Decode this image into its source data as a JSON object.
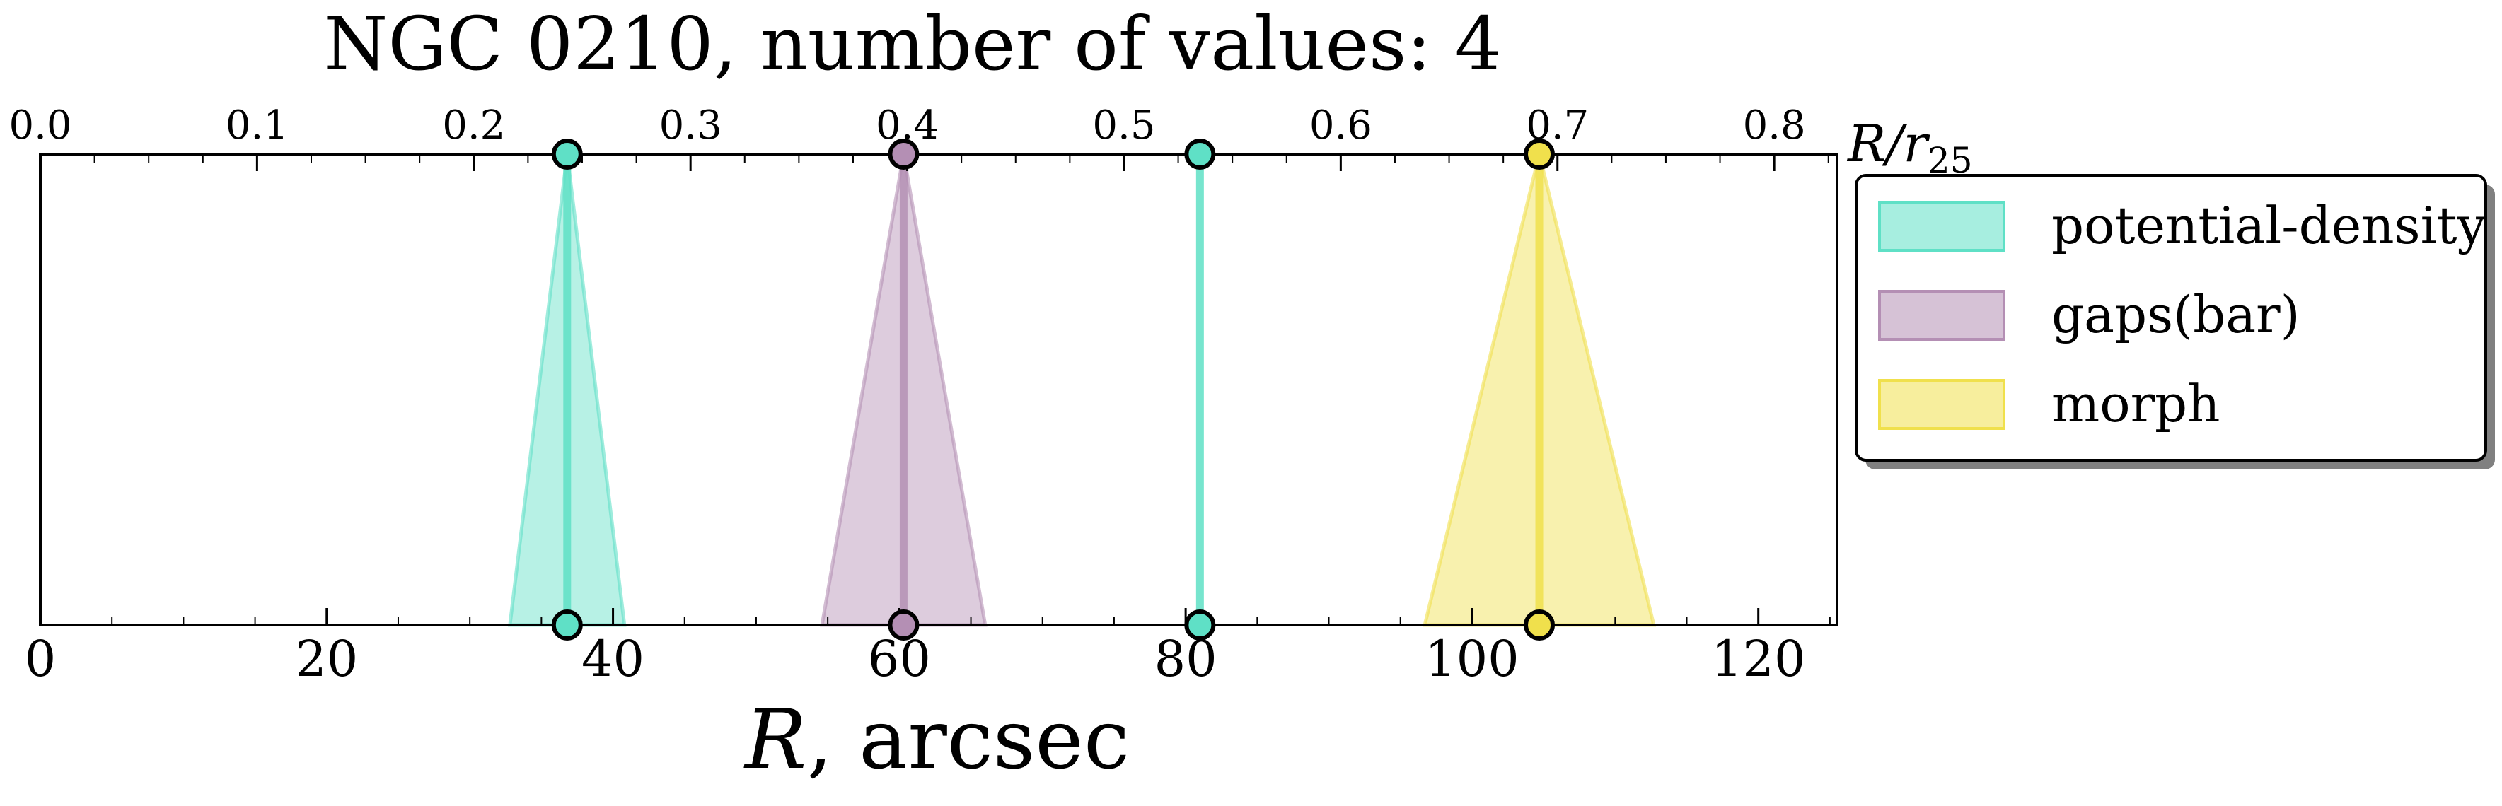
{
  "chart_data": {
    "type": "interval",
    "title": "NGC 0210, number of values: 4",
    "xlabel_italic": "R",
    "xlabel_rest": ", arcsec",
    "top_axis_label": {
      "main": "R/r",
      "sub": "25"
    },
    "xlim": [
      0,
      125.5
    ],
    "xticks": [
      0,
      20,
      40,
      60,
      80,
      100,
      120
    ],
    "xtick_labels": [
      "0",
      "20",
      "40",
      "60",
      "80",
      "100",
      "120"
    ],
    "top_xlim": [
      0,
      0.829
    ],
    "top_xticks": [
      0.0,
      0.1,
      0.2,
      0.3,
      0.4,
      0.5,
      0.6,
      0.7,
      0.8
    ],
    "top_xtick_labels": [
      "0.0",
      "0.1",
      "0.2",
      "0.3",
      "0.4",
      "0.5",
      "0.6",
      "0.7",
      "0.8"
    ],
    "legend_position": "outside-right",
    "series": [
      {
        "name": "potential-density",
        "color": "#5fe0c6"
      },
      {
        "name": "gaps(bar)",
        "color": "#b48fb4"
      },
      {
        "name": "morph",
        "color": "#f0e04c"
      }
    ],
    "points": [
      {
        "series": 0,
        "value": 36.8,
        "err": 4.0
      },
      {
        "series": 1,
        "value": 60.3,
        "err": 5.7
      },
      {
        "series": 0,
        "value": 81.0,
        "err": 0
      },
      {
        "series": 2,
        "value": 104.7,
        "err": 8.0
      }
    ]
  }
}
